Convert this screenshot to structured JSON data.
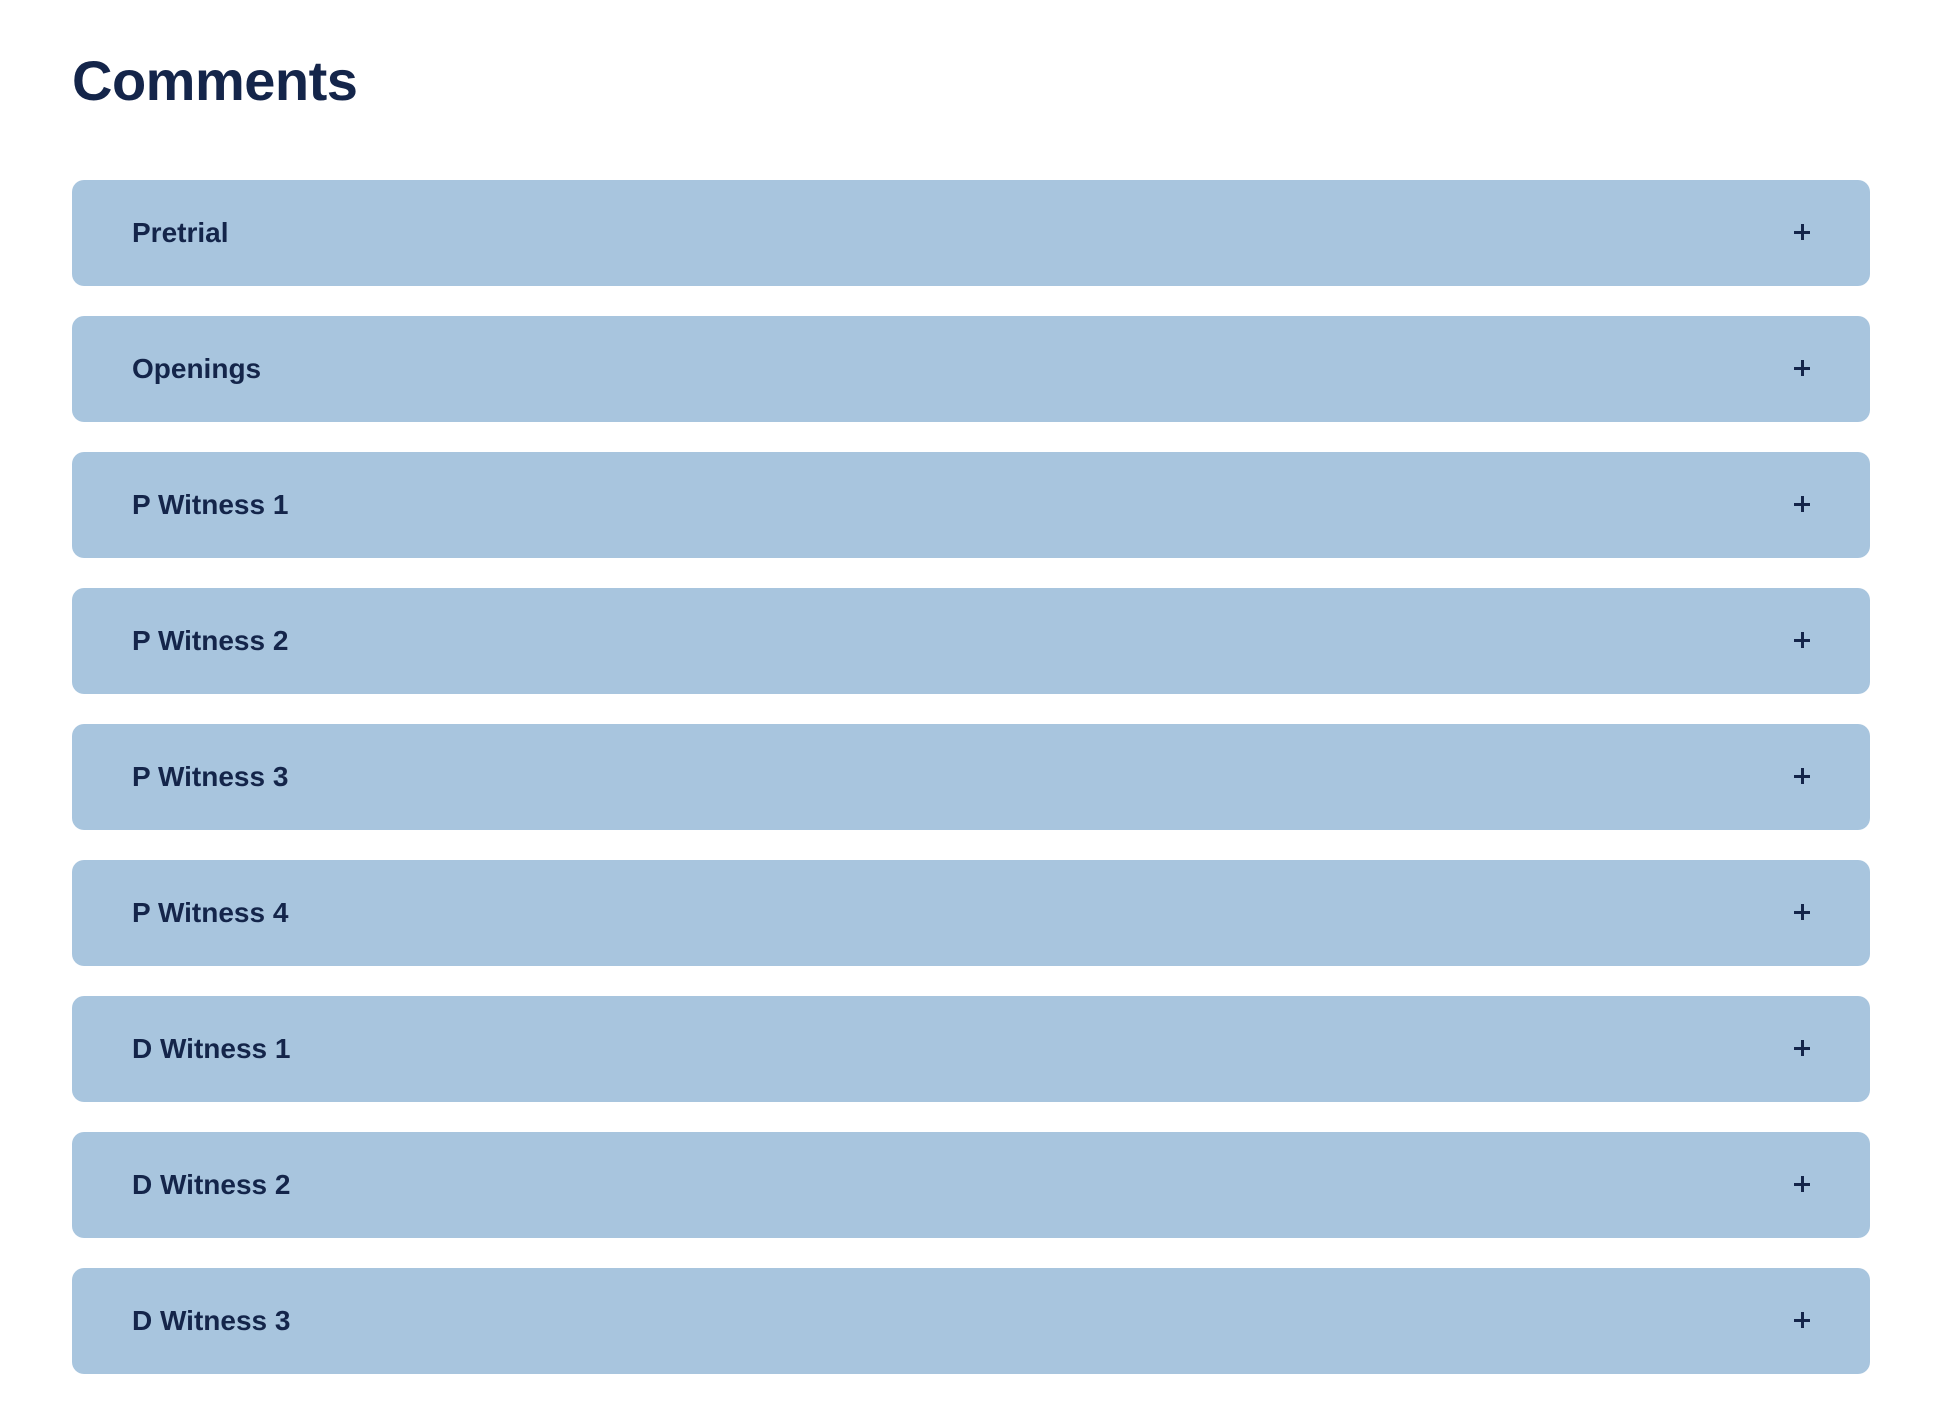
{
  "header": {
    "title": "Comments"
  },
  "accordion": {
    "items": [
      "Pretrial",
      "Openings",
      "P Witness 1",
      "P Witness 2",
      "P Witness 3",
      "P Witness 4",
      "D Witness 1",
      "D Witness 2",
      "D Witness 3"
    ]
  }
}
